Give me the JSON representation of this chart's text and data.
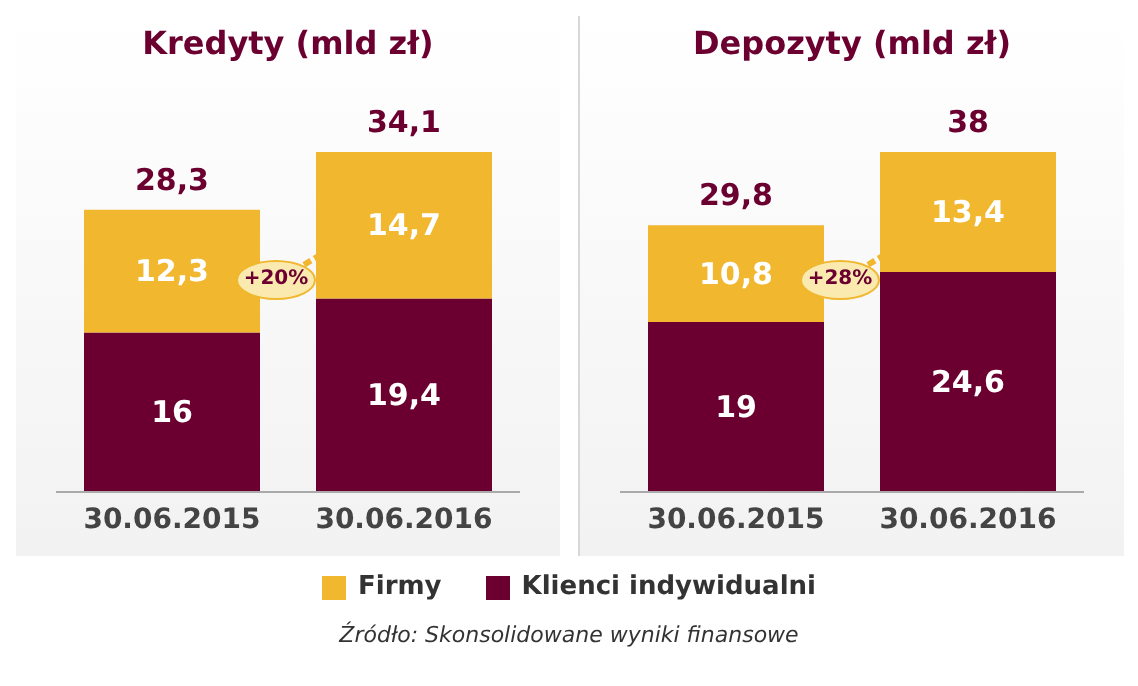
{
  "chart_data": [
    {
      "type": "bar",
      "title": "Kredyty (mld zł)",
      "categories": [
        "30.06.2015",
        "30.06.2016"
      ],
      "stacked": true,
      "legend": "bottom",
      "series": [
        {
          "name": "Klienci indywidualni",
          "color": "#6b0030",
          "values": [
            16,
            19.4
          ],
          "value_labels": [
            "16",
            "19,4"
          ]
        },
        {
          "name": "Firmy",
          "color": "#f0b72f",
          "values": [
            12.3,
            14.7
          ],
          "value_labels": [
            "12,3",
            "14,7"
          ]
        }
      ],
      "totals": [
        "28,3",
        "34,1"
      ],
      "annotations": [
        "+20%"
      ]
    },
    {
      "type": "bar",
      "title": "Depozyty (mld zł)",
      "categories": [
        "30.06.2015",
        "30.06.2016"
      ],
      "stacked": true,
      "series": [
        {
          "color": "#6b0030",
          "values": [
            19,
            24.6
          ],
          "value_labels": [
            "19",
            "24,6"
          ]
        },
        {
          "color": "#f0b72f",
          "values": [
            10.8,
            13.4
          ],
          "value_labels": [
            "10,8",
            "13,4"
          ]
        }
      ],
      "totals": [
        "29,8",
        "38"
      ],
      "annotations": [
        "+28%",
        "Źródło: Skonsolidowane wyniki finansowe"
      ]
    }
  ]
}
